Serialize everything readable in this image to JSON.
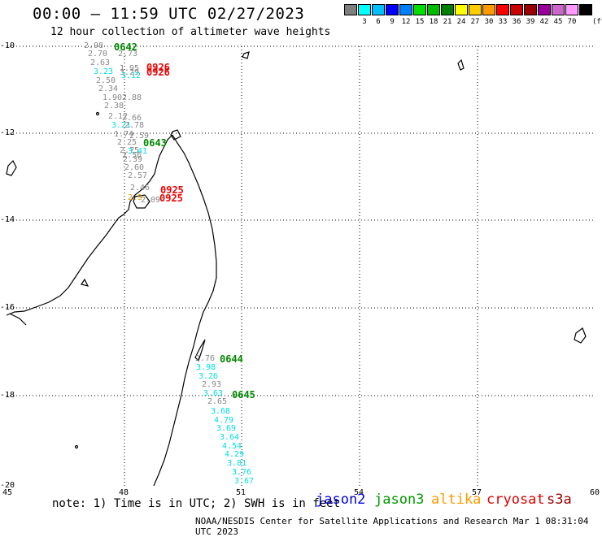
{
  "header": {
    "title": "00:00 – 11:59 UTC 02/27/2023",
    "subtitle": "12 hour collection of altimeter wave heights"
  },
  "color_scale": {
    "unit": "(ft)",
    "items": [
      {
        "label": "",
        "color": "#7f7f7f"
      },
      {
        "label": "3",
        "color": "#00ffff"
      },
      {
        "label": "6",
        "color": "#00bfff"
      },
      {
        "label": "9",
        "color": "#0000ff"
      },
      {
        "label": "12",
        "color": "#0080ff"
      },
      {
        "label": "15",
        "color": "#00dd00"
      },
      {
        "label": "18",
        "color": "#00bb00"
      },
      {
        "label": "21",
        "color": "#008000"
      },
      {
        "label": "24",
        "color": "#ffff00"
      },
      {
        "label": "27",
        "color": "#ffcc00"
      },
      {
        "label": "30",
        "color": "#ff9900"
      },
      {
        "label": "33",
        "color": "#ff0000"
      },
      {
        "label": "36",
        "color": "#cc0000"
      },
      {
        "label": "39",
        "color": "#990000"
      },
      {
        "label": "42",
        "color": "#990099"
      },
      {
        "label": "45",
        "color": "#cc66cc"
      },
      {
        "label": "70",
        "color": "#ff99ff"
      },
      {
        "label": "",
        "color": "#000000"
      }
    ]
  },
  "axes": {
    "lat_labels": [
      "-10",
      "-12",
      "-14",
      "-16",
      "-18",
      "-20"
    ],
    "lon_labels": [
      "45",
      "48",
      "51",
      "54",
      "57",
      "60"
    ]
  },
  "observations": [
    {
      "text": "2.98",
      "color": "#888888"
    },
    {
      "text": "0642",
      "color": "#008800"
    },
    {
      "text": "2.70",
      "color": "#888888"
    },
    {
      "text": "2.73",
      "color": "#888888"
    },
    {
      "text": "2.63",
      "color": "#888888"
    },
    {
      "text": "1.95",
      "color": "#888888"
    },
    {
      "text": "3.23",
      "color": "#00dddd"
    },
    {
      "text": "3.29",
      "color": "#888888"
    },
    {
      "text": "3.12",
      "color": "#00dddd"
    },
    {
      "text": "2.50",
      "color": "#888888"
    },
    {
      "text": "2.34",
      "color": "#888888"
    },
    {
      "text": "1.90",
      "color": "#888888"
    },
    {
      "text": "2.88",
      "color": "#888888"
    },
    {
      "text": "2.38",
      "color": "#888888"
    },
    {
      "text": "2.12",
      "color": "#888888"
    },
    {
      "text": "2.66",
      "color": "#888888"
    },
    {
      "text": "3.21",
      "color": "#00dddd"
    },
    {
      "text": "2.78",
      "color": "#888888"
    },
    {
      "text": "1.74",
      "color": "#888888"
    },
    {
      "text": "2.59",
      "color": "#888888"
    },
    {
      "text": "2.25",
      "color": "#888888"
    },
    {
      "text": "0643",
      "color": "#008800"
    },
    {
      "text": "2.75",
      "color": "#888888"
    },
    {
      "text": "3.41",
      "color": "#00dddd"
    },
    {
      "text": "2.56",
      "color": "#888888"
    },
    {
      "text": "2.39",
      "color": "#888888"
    },
    {
      "text": "2.60",
      "color": "#888888"
    },
    {
      "text": "2.57",
      "color": "#888888"
    },
    {
      "text": "2.46",
      "color": "#888888"
    },
    {
      "text": "2.9",
      "color": "#e0a000"
    },
    {
      "text": "2.09",
      "color": "#888888"
    },
    {
      "text": "0925",
      "color": "#ee0000"
    },
    {
      "text": "0925",
      "color": "#ee0000"
    },
    {
      "text": "0926",
      "color": "#ee0000"
    },
    {
      "text": "0926",
      "color": "#ee0000"
    },
    {
      "text": "2.76",
      "color": "#888888"
    },
    {
      "text": "0644",
      "color": "#008800"
    },
    {
      "text": "3.98",
      "color": "#00dddd"
    },
    {
      "text": "3.26",
      "color": "#00dddd"
    },
    {
      "text": "2.93",
      "color": "#888888"
    },
    {
      "text": "3.63",
      "color": "#00dddd"
    },
    {
      "text": "0645",
      "color": "#008800"
    },
    {
      "text": "2.65",
      "color": "#888888"
    },
    {
      "text": "3.68",
      "color": "#00dddd"
    },
    {
      "text": "4.79",
      "color": "#00dddd"
    },
    {
      "text": "3.69",
      "color": "#00dddd"
    },
    {
      "text": "3.64",
      "color": "#00dddd"
    },
    {
      "text": "4.54",
      "color": "#00dddd"
    },
    {
      "text": "4.29",
      "color": "#00dddd"
    },
    {
      "text": "3.81",
      "color": "#00dddd"
    },
    {
      "text": "3.76",
      "color": "#00dddd"
    },
    {
      "text": "3.67",
      "color": "#00dddd"
    }
  ],
  "footer": {
    "note": "note: 1) Time is in UTC; 2) SWH is in feet",
    "satellites": [
      {
        "name": "jason2",
        "color": "#0000dd"
      },
      {
        "name": "jason3",
        "color": "#009900"
      },
      {
        "name": "altika",
        "color": "#ff9900"
      },
      {
        "name": "cryosat",
        "color": "#dd0000"
      },
      {
        "name": "s3a",
        "color": "#990000"
      }
    ],
    "credit": "NOAA/NESDIS Center for Satellite Applications and Research    Mar  1 08:31:04 UTC 2023"
  }
}
